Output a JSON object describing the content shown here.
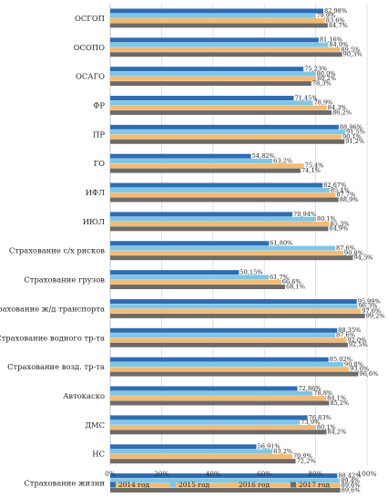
{
  "chart_data": {
    "type": "bar",
    "orientation": "horizontal",
    "categories": [
      "ОСГОП",
      "ОСОПО",
      "ОСАГО",
      "ФР",
      "ПР",
      "ГО",
      "ИФЛ",
      "ИЮЛ",
      "Страхование с/х рисков",
      "Страхование грузов",
      "Страхование ж/д транспорта",
      "Страхование водного тр-та",
      "Страхование возд. тр-та",
      "Автокаско",
      "ДМС",
      "НС",
      "Страхование жизни"
    ],
    "series": [
      {
        "name": "2014 год",
        "color": "#2e6db4",
        "values": [
          82.98,
          81.16,
          75.23,
          71.45,
          88.96,
          54.82,
          82.67,
          70.94,
          61.8,
          50.15,
          95.99,
          88.35,
          85.02,
          72.86,
          76.83,
          56.91,
          88.42
        ],
        "labels": [
          "82,98%",
          "81,16%",
          "75,23%",
          "71,45%",
          "88,96%",
          "54,82%",
          "82,67%",
          "70,94%",
          "61,80%",
          "50,15%",
          "95,99%",
          "88,35%",
          "85,02%",
          "72,86%",
          "76,83%",
          "56,91%",
          "88,42%"
        ]
      },
      {
        "name": "2015 год",
        "color": "#79c7ec",
        "values": [
          79.9,
          84.9,
          80.0,
          78.9,
          91.5,
          63.2,
          85.4,
          80.1,
          87.6,
          61.7,
          96.3,
          87.6,
          90.8,
          78.8,
          73.9,
          63.2,
          89.4
        ],
        "labels": [
          "79,9%",
          "84,9%",
          "80,0%",
          "78,9%",
          "91,5%",
          "63,2%",
          "85,4%",
          "80,1%",
          "87,6%",
          "61,7%",
          "96,3%",
          "87,6%",
          "90,8%",
          "78,8%",
          "73,9%",
          "63,2%",
          "89,4%"
        ]
      },
      {
        "name": "2016 год",
        "color": "#f9b96c",
        "values": [
          83.6,
          89.5,
          80.2,
          84.3,
          90.1,
          75.4,
          87.7,
          85.3,
          90.8,
          66.6,
          97.6,
          92.0,
          93.0,
          84.1,
          80.1,
          70.9,
          89.6
        ],
        "labels": [
          "83,6%",
          "89,5%",
          "80,2%",
          "84,3%",
          "90,1%",
          "75,4%",
          "87,7%",
          "85,3%",
          "90,8%",
          "66,6%",
          "97,6%",
          "92,0%",
          "93,0%",
          "84,1%",
          "80,1%",
          "70,9%",
          "89,6%"
        ]
      },
      {
        "name": "2017 год",
        "color": "#6b6b6b",
        "values": [
          84.7,
          90.3,
          78.3,
          86.2,
          91.2,
          74.1,
          88.9,
          84.9,
          94.5,
          68.1,
          99.2,
          92.5,
          96.6,
          85.2,
          84.2,
          72.2,
          89.6
        ],
        "labels": [
          "84,7%",
          "90,3%",
          "78,3%",
          "86,2%",
          "91,2%",
          "74,1%",
          "88,9%",
          "84,9%",
          "94,5%",
          "68,1%",
          "99,2%",
          "92,5%",
          "96,6%",
          "85,2%",
          "84,2%",
          "72,2%",
          "89,6%"
        ]
      }
    ],
    "xlim": [
      0,
      100
    ],
    "ticks": [
      "0%",
      "20%",
      "40%",
      "60%",
      "80%",
      "100%"
    ],
    "tick_values": [
      0,
      20,
      40,
      60,
      80,
      100
    ],
    "grid": true,
    "legend_position": "bottom"
  }
}
